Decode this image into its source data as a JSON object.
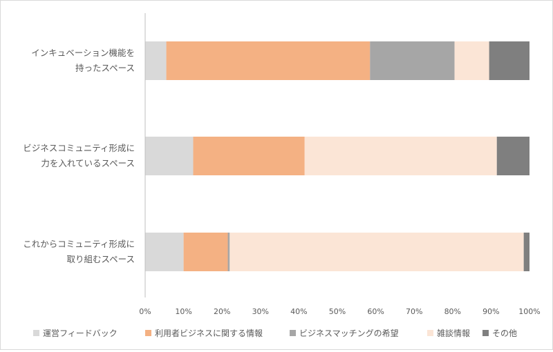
{
  "chart_data": {
    "type": "bar",
    "orientation": "horizontal",
    "stacked": "percent",
    "categories": [
      "インキュベーション機能を持ったスペース",
      "ビジネスコミュニティ形成に力を入れているスペース",
      "これからコミュニティ形成に取り組むスペース"
    ],
    "category_label_lines": [
      [
        "インキュベーション機能を",
        "持ったスペース"
      ],
      [
        "ビジネスコミュニティ形成に",
        "力を入れているスペース"
      ],
      [
        "これからコミュニティ形成に",
        "取り組むスペース"
      ]
    ],
    "series": [
      {
        "name": "運営フィードバック",
        "color": "#d9d9d9",
        "values": [
          5.5,
          12.5,
          10.0
        ]
      },
      {
        "name": "利用者ビジネスに関する情報",
        "color": "#f4b183",
        "values": [
          53.0,
          29.0,
          11.5
        ]
      },
      {
        "name": "ビジネスマッチングの希望",
        "color": "#a6a6a6",
        "values": [
          22.0,
          0.0,
          0.5
        ]
      },
      {
        "name": "雑談情報",
        "color": "#fbe5d6",
        "values": [
          9.0,
          50.0,
          76.5
        ]
      },
      {
        "name": "その他",
        "color": "#7f7f7f",
        "values": [
          10.5,
          8.5,
          1.5
        ]
      }
    ],
    "xlim": [
      0,
      100
    ],
    "x_ticks": [
      "0%",
      "10%",
      "20%",
      "30%",
      "40%",
      "50%",
      "60%",
      "70%",
      "80%",
      "90%",
      "100%"
    ],
    "grid": false,
    "legend_position": "bottom"
  }
}
